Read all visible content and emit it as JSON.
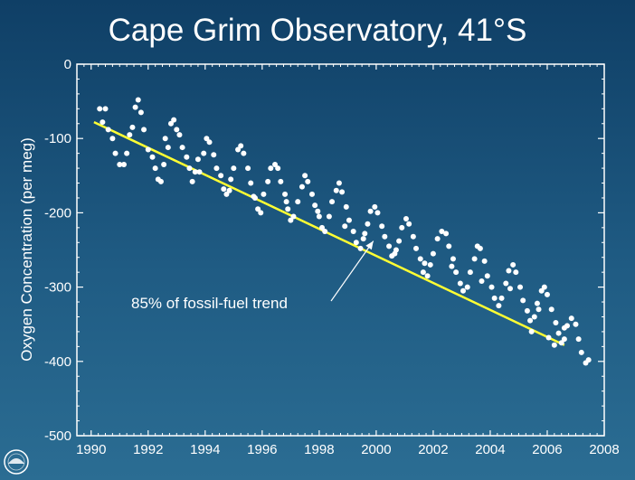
{
  "chart_data": {
    "type": "scatter",
    "title": "Cape Grim Observatory, 41°S",
    "ylabel": "Oxygen Concentration (per meg)",
    "xlabel": "",
    "xlim": [
      1989.5,
      2008
    ],
    "ylim": [
      -500,
      0
    ],
    "x_ticks": [
      1990,
      1992,
      1994,
      1996,
      1998,
      2000,
      2002,
      2004,
      2006,
      2008
    ],
    "y_ticks": [
      0,
      -100,
      -200,
      -300,
      -400,
      -500
    ],
    "grid": false,
    "trend_line": {
      "color": "#ffff33",
      "x": [
        1990.1,
        2006.6
      ],
      "y": [
        -78,
        -378
      ]
    },
    "annotation": {
      "text": "85% of fossil-fuel trend",
      "arrow_to": [
        1999.9,
        -238
      ]
    },
    "points_color": "#ffffff",
    "points": [
      [
        1990.3,
        -60
      ],
      [
        1990.5,
        -60
      ],
      [
        1990.6,
        -88
      ],
      [
        1990.75,
        -100
      ],
      [
        1990.85,
        -120
      ],
      [
        1991.0,
        -135
      ],
      [
        1991.15,
        -135
      ],
      [
        1991.25,
        -120
      ],
      [
        1991.45,
        -85
      ],
      [
        1991.55,
        -58
      ],
      [
        1991.65,
        -48
      ],
      [
        1991.75,
        -65
      ],
      [
        1991.85,
        -88
      ],
      [
        1992.0,
        -115
      ],
      [
        1992.15,
        -125
      ],
      [
        1992.25,
        -140
      ],
      [
        1992.35,
        -155
      ],
      [
        1992.45,
        -158
      ],
      [
        1992.55,
        -135
      ],
      [
        1992.7,
        -112
      ],
      [
        1992.8,
        -80
      ],
      [
        1992.9,
        -75
      ],
      [
        1993.0,
        -88
      ],
      [
        1993.1,
        -95
      ],
      [
        1993.2,
        -112
      ],
      [
        1993.35,
        -125
      ],
      [
        1993.45,
        -140
      ],
      [
        1993.55,
        -158
      ],
      [
        1993.65,
        -145
      ],
      [
        1993.8,
        -145
      ],
      [
        1993.95,
        -120
      ],
      [
        1994.05,
        -100
      ],
      [
        1994.15,
        -105
      ],
      [
        1994.3,
        -122
      ],
      [
        1994.4,
        -140
      ],
      [
        1994.55,
        -150
      ],
      [
        1994.65,
        -168
      ],
      [
        1994.75,
        -175
      ],
      [
        1994.85,
        -170
      ],
      [
        1995.0,
        -140
      ],
      [
        1995.15,
        -115
      ],
      [
        1995.25,
        -110
      ],
      [
        1995.35,
        -120
      ],
      [
        1995.5,
        -140
      ],
      [
        1995.6,
        -160
      ],
      [
        1995.75,
        -180
      ],
      [
        1995.85,
        -195
      ],
      [
        1995.95,
        -200
      ],
      [
        1996.05,
        -175
      ],
      [
        1996.2,
        -158
      ],
      [
        1996.3,
        -140
      ],
      [
        1996.45,
        -135
      ],
      [
        1996.55,
        -140
      ],
      [
        1996.65,
        -158
      ],
      [
        1996.8,
        -175
      ],
      [
        1996.9,
        -195
      ],
      [
        1997.0,
        -210
      ],
      [
        1997.1,
        -205
      ],
      [
        1997.25,
        -185
      ],
      [
        1997.4,
        -165
      ],
      [
        1997.5,
        -150
      ],
      [
        1997.6,
        -158
      ],
      [
        1997.75,
        -175
      ],
      [
        1997.85,
        -190
      ],
      [
        1998.0,
        -205
      ],
      [
        1998.1,
        -220
      ],
      [
        1998.2,
        -225
      ],
      [
        1998.35,
        -205
      ],
      [
        1998.45,
        -185
      ],
      [
        1998.6,
        -170
      ],
      [
        1998.7,
        -160
      ],
      [
        1998.8,
        -172
      ],
      [
        1998.95,
        -192
      ],
      [
        1999.05,
        -210
      ],
      [
        1999.2,
        -225
      ],
      [
        1999.3,
        -240
      ],
      [
        1999.45,
        -248
      ],
      [
        1999.55,
        -235
      ],
      [
        1999.7,
        -215
      ],
      [
        1999.8,
        -198
      ],
      [
        1999.95,
        -192
      ],
      [
        2000.05,
        -200
      ],
      [
        2000.2,
        -218
      ],
      [
        2000.3,
        -232
      ],
      [
        2000.45,
        -245
      ],
      [
        2000.55,
        -258
      ],
      [
        2000.65,
        -255
      ],
      [
        2000.8,
        -238
      ],
      [
        2000.9,
        -220
      ],
      [
        2001.05,
        -208
      ],
      [
        2001.15,
        -215
      ],
      [
        2001.3,
        -232
      ],
      [
        2001.4,
        -248
      ],
      [
        2001.55,
        -262
      ],
      [
        2001.65,
        -280
      ],
      [
        2001.8,
        -285
      ],
      [
        2001.9,
        -270
      ],
      [
        2002.0,
        -255
      ],
      [
        2002.15,
        -235
      ],
      [
        2002.3,
        -225
      ],
      [
        2002.45,
        -228
      ],
      [
        2002.55,
        -245
      ],
      [
        2002.7,
        -262
      ],
      [
        2002.8,
        -280
      ],
      [
        2002.95,
        -295
      ],
      [
        2003.05,
        -305
      ],
      [
        2003.2,
        -300
      ],
      [
        2003.3,
        -280
      ],
      [
        2003.45,
        -262
      ],
      [
        2003.55,
        -245
      ],
      [
        2003.65,
        -248
      ],
      [
        2003.8,
        -265
      ],
      [
        2003.9,
        -285
      ],
      [
        2004.05,
        -300
      ],
      [
        2004.15,
        -315
      ],
      [
        2004.3,
        -325
      ],
      [
        2004.4,
        -315
      ],
      [
        2004.55,
        -295
      ],
      [
        2004.65,
        -278
      ],
      [
        2004.8,
        -270
      ],
      [
        2004.9,
        -280
      ],
      [
        2005.05,
        -300
      ],
      [
        2005.15,
        -318
      ],
      [
        2005.3,
        -332
      ],
      [
        2005.4,
        -345
      ],
      [
        2005.55,
        -340
      ],
      [
        2005.65,
        -322
      ],
      [
        2005.8,
        -305
      ],
      [
        2005.9,
        -300
      ],
      [
        2006.0,
        -310
      ],
      [
        2006.15,
        -330
      ],
      [
        2006.3,
        -348
      ],
      [
        2006.4,
        -362
      ],
      [
        2006.5,
        -375
      ],
      [
        2006.6,
        -370
      ],
      [
        2006.7,
        -352
      ],
      [
        2006.85,
        -342
      ],
      [
        2007.0,
        -350
      ],
      [
        2007.1,
        -370
      ],
      [
        2007.2,
        -388
      ],
      [
        2007.35,
        -402
      ],
      [
        2007.45,
        -398
      ],
      [
        1990.4,
        -78
      ],
      [
        1991.35,
        -95
      ],
      [
        1992.6,
        -100
      ],
      [
        1993.75,
        -128
      ],
      [
        1994.9,
        -155
      ],
      [
        1995.7,
        -178
      ],
      [
        1996.85,
        -185
      ],
      [
        1997.95,
        -198
      ],
      [
        1998.9,
        -218
      ],
      [
        1999.6,
        -228
      ],
      [
        2000.7,
        -250
      ],
      [
        2001.7,
        -268
      ],
      [
        2002.65,
        -272
      ],
      [
        2003.7,
        -292
      ],
      [
        2004.7,
        -302
      ],
      [
        2005.7,
        -330
      ],
      [
        2006.6,
        -355
      ],
      [
        2005.45,
        -360
      ],
      [
        2006.05,
        -368
      ],
      [
        2006.25,
        -378
      ]
    ]
  }
}
